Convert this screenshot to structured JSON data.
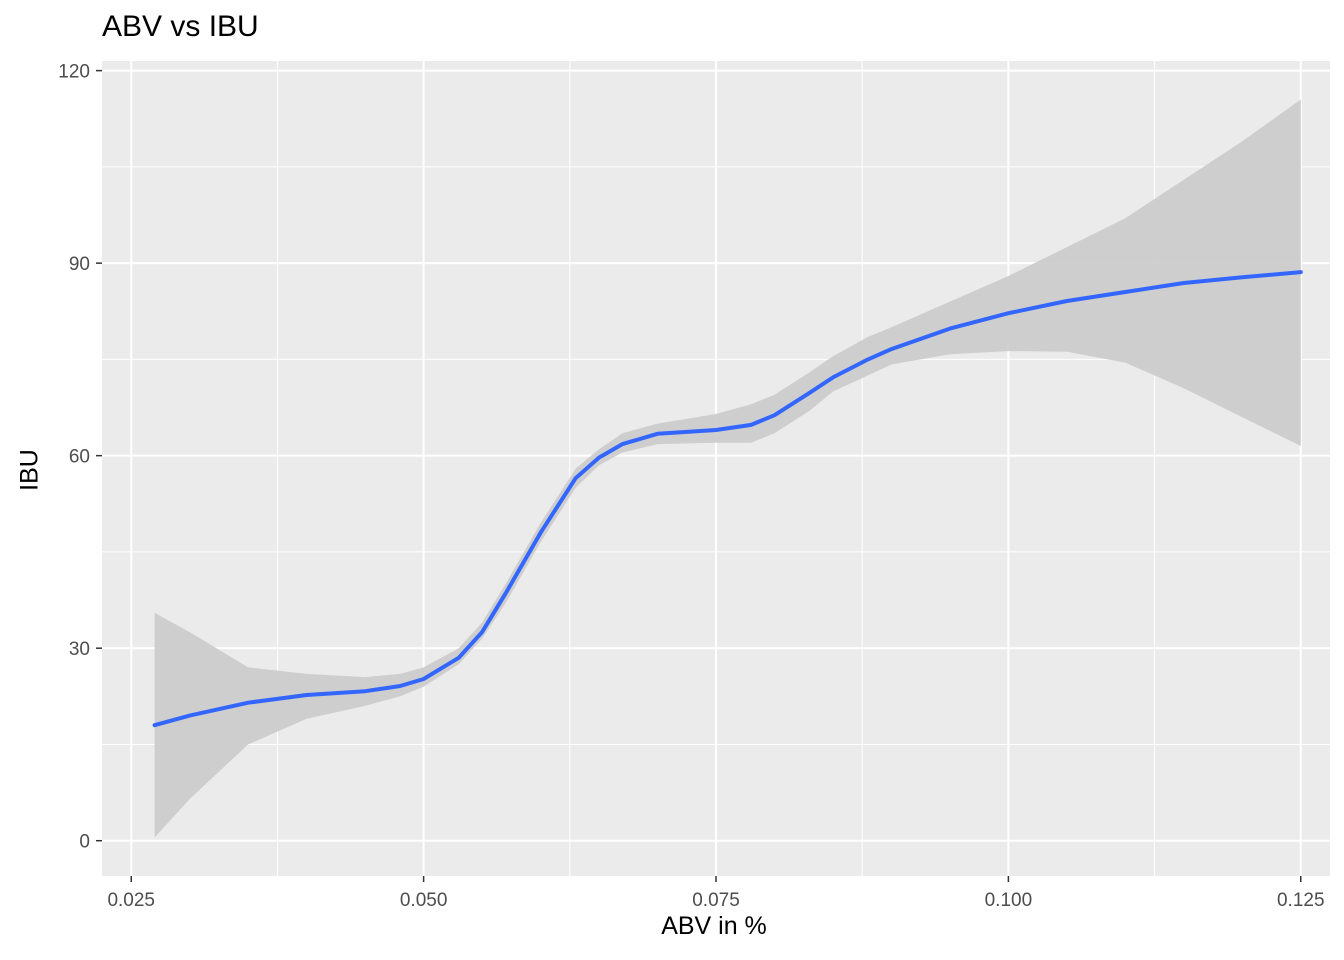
{
  "title": "ABV vs IBU",
  "chart_data": {
    "type": "line",
    "title": "ABV vs IBU",
    "xlabel": "ABV in %",
    "ylabel": "IBU",
    "xlim": [
      0.0225,
      0.1275
    ],
    "ylim": [
      -5.5,
      121.5
    ],
    "x_ticks": [
      0.025,
      0.05,
      0.075,
      0.1,
      0.125
    ],
    "x_tick_labels": [
      "0.025",
      "0.050",
      "0.075",
      "0.100",
      "0.125"
    ],
    "y_ticks": [
      0,
      30,
      60,
      90,
      120
    ],
    "y_tick_labels": [
      "0",
      "30",
      "60",
      "90",
      "120"
    ],
    "grid": true,
    "background": "#ebebeb",
    "series": [
      {
        "style": "smooth-line",
        "color": "#3366ff",
        "x": [
          0.027,
          0.03,
          0.035,
          0.04,
          0.045,
          0.048,
          0.05,
          0.053,
          0.055,
          0.057,
          0.06,
          0.063,
          0.065,
          0.067,
          0.07,
          0.075,
          0.078,
          0.08,
          0.083,
          0.085,
          0.088,
          0.09,
          0.095,
          0.1,
          0.105,
          0.11,
          0.115,
          0.12,
          0.125
        ],
        "y": [
          18.0,
          19.5,
          21.5,
          22.7,
          23.3,
          24.1,
          25.2,
          28.5,
          32.5,
          38.5,
          48.0,
          56.5,
          59.7,
          61.8,
          63.4,
          64.0,
          64.8,
          66.3,
          69.8,
          72.2,
          75.0,
          76.6,
          79.8,
          82.2,
          84.1,
          85.5,
          86.9,
          87.8,
          88.6
        ]
      }
    ],
    "confidence_band": {
      "color": "#cccccc",
      "x": [
        0.027,
        0.03,
        0.035,
        0.04,
        0.045,
        0.048,
        0.05,
        0.053,
        0.055,
        0.057,
        0.06,
        0.063,
        0.065,
        0.067,
        0.07,
        0.075,
        0.078,
        0.08,
        0.083,
        0.085,
        0.088,
        0.09,
        0.095,
        0.1,
        0.105,
        0.11,
        0.115,
        0.12,
        0.125
      ],
      "lower": [
        0.5,
        6.5,
        15.0,
        19.0,
        21.0,
        22.5,
        24.0,
        27.5,
        31.5,
        37.0,
        46.5,
        55.0,
        58.5,
        60.5,
        61.8,
        62.0,
        62.0,
        63.5,
        67.0,
        70.0,
        72.5,
        74.2,
        75.8,
        76.3,
        76.2,
        74.5,
        70.5,
        66.0,
        61.5
      ],
      "upper": [
        35.5,
        32.5,
        27.0,
        26.0,
        25.5,
        26.0,
        27.0,
        30.0,
        34.0,
        40.0,
        49.5,
        58.0,
        61.0,
        63.5,
        65.0,
        66.5,
        68.0,
        69.5,
        73.0,
        75.5,
        78.5,
        80.0,
        84.0,
        88.0,
        92.5,
        97.0,
        103.0,
        109.0,
        115.5
      ]
    }
  }
}
